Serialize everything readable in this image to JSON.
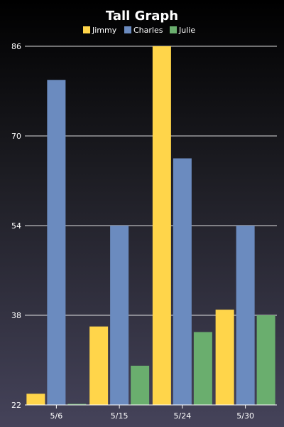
{
  "chart_data": {
    "type": "bar",
    "title": "Tall Graph",
    "categories": [
      "5/6",
      "5/15",
      "5/24",
      "5/30"
    ],
    "series": [
      {
        "name": "Jimmy",
        "color": "#ffd54a",
        "values": [
          24,
          36,
          86,
          39
        ]
      },
      {
        "name": "Charles",
        "color": "#6b8bbf",
        "values": [
          80,
          54,
          66,
          54
        ]
      },
      {
        "name": "Julie",
        "color": "#6aae6e",
        "values": [
          22,
          29,
          35,
          38
        ]
      }
    ],
    "ylim": [
      22,
      86
    ],
    "yticks": [
      22,
      38,
      54,
      70,
      86
    ],
    "grid": true,
    "legend_position": "top"
  }
}
